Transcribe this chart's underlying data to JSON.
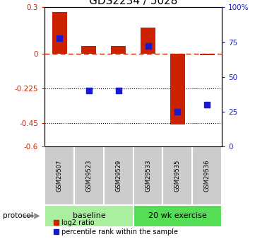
{
  "title": "GDS2234 / 5028",
  "samples": [
    "GSM29507",
    "GSM29523",
    "GSM29529",
    "GSM29533",
    "GSM29535",
    "GSM29536"
  ],
  "log2_ratio": [
    0.27,
    0.05,
    0.05,
    0.17,
    -0.46,
    -0.01
  ],
  "percentile_rank": [
    78,
    40,
    40,
    72,
    25,
    30
  ],
  "ylim_left": [
    -0.6,
    0.3
  ],
  "ylim_right": [
    0,
    100
  ],
  "yticks_left": [
    0.3,
    0.0,
    -0.225,
    -0.45,
    -0.6
  ],
  "ytick_labels_left": [
    "0.3",
    "0",
    "-0.225",
    "-0.45",
    "-0.6"
  ],
  "yticks_right": [
    100,
    75,
    50,
    25,
    0
  ],
  "ytick_labels_right": [
    "100%",
    "75",
    "50",
    "25",
    "0"
  ],
  "hlines_dotted": [
    -0.225,
    -0.45
  ],
  "hline_dashed": 0.0,
  "bar_color": "#cc2200",
  "dot_color": "#1a1acc",
  "bar_width": 0.5,
  "dot_size": 30,
  "baseline_indices": [
    0,
    1,
    2
  ],
  "exercise_indices": [
    3,
    4,
    5
  ],
  "baseline_label": "baseline",
  "exercise_label": "20 wk exercise",
  "protocol_label": "protocol",
  "group_color_baseline": "#aaeea0",
  "group_color_exercise": "#55dd55",
  "sample_box_color": "#cccccc",
  "legend_red_label": "log2 ratio",
  "legend_blue_label": "percentile rank within the sample",
  "title_fontsize": 11,
  "tick_fontsize": 7.5,
  "sample_fontsize": 6,
  "group_fontsize": 8,
  "legend_fontsize": 7
}
